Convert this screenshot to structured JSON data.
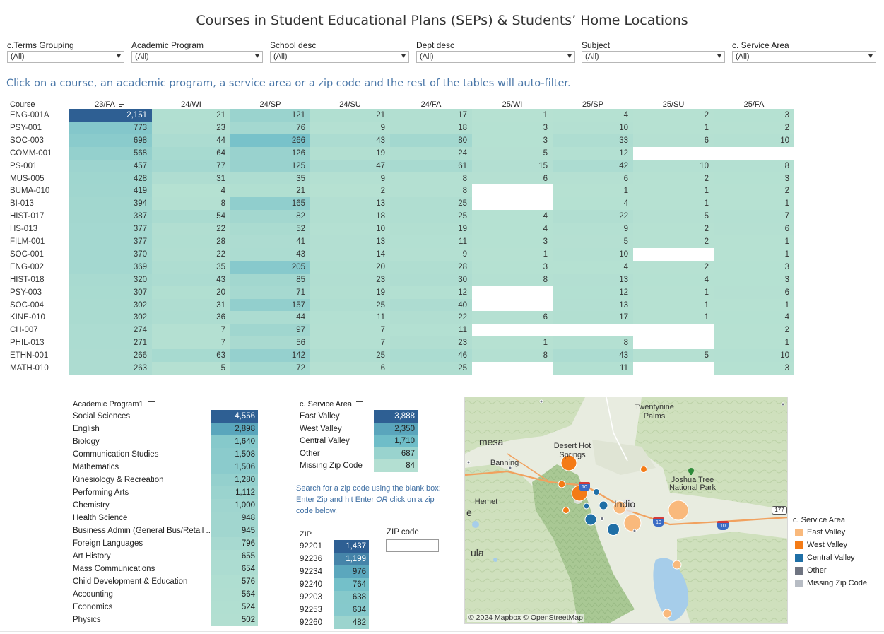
{
  "title": "Courses in Student Educational Plans (SEPs) & Students’ Home Locations",
  "filters": [
    {
      "label": "c.Terms Grouping",
      "value": "(All)",
      "left": 10,
      "width": 166
    },
    {
      "label": "Academic Program",
      "value": "(All)",
      "left": 186,
      "width": 186
    },
    {
      "label": "School desc",
      "value": "(All)",
      "left": 382,
      "width": 197
    },
    {
      "label": "Dept desc",
      "value": "(All)",
      "left": 589,
      "width": 225
    },
    {
      "label": "Subject",
      "value": "(All)",
      "left": 823,
      "width": 203
    },
    {
      "label": "c. Service Area",
      "value": "(All)",
      "left": 1036,
      "width": 204
    }
  ],
  "instruction": "Click on a course, an academic program, a service area or a zip code and the rest of the tables will auto-filter.",
  "course_table": {
    "header_course": "Course",
    "terms": [
      "23/FA",
      "24/WI",
      "24/SP",
      "24/SU",
      "24/FA",
      "25/WI",
      "25/SP",
      "25/SU",
      "25/FA"
    ],
    "rows": [
      {
        "course": "ENG-001A",
        "values": [
          2151,
          21,
          121,
          21,
          17,
          1,
          4,
          2,
          3
        ]
      },
      {
        "course": "PSY-001",
        "values": [
          773,
          23,
          76,
          9,
          18,
          3,
          10,
          1,
          2
        ]
      },
      {
        "course": "SOC-003",
        "values": [
          698,
          44,
          266,
          43,
          80,
          3,
          33,
          6,
          10
        ]
      },
      {
        "course": "COMM-001",
        "values": [
          568,
          64,
          126,
          19,
          24,
          5,
          12,
          null,
          null
        ]
      },
      {
        "course": "PS-001",
        "values": [
          457,
          77,
          125,
          47,
          61,
          15,
          42,
          10,
          8
        ]
      },
      {
        "course": "MUS-005",
        "values": [
          428,
          31,
          35,
          9,
          8,
          6,
          6,
          2,
          3
        ]
      },
      {
        "course": "BUMA-010",
        "values": [
          419,
          4,
          21,
          2,
          8,
          null,
          1,
          1,
          2
        ]
      },
      {
        "course": "BI-013",
        "values": [
          394,
          8,
          165,
          13,
          25,
          null,
          4,
          1,
          1
        ]
      },
      {
        "course": "HIST-017",
        "values": [
          387,
          54,
          82,
          18,
          25,
          4,
          22,
          5,
          7
        ]
      },
      {
        "course": "HS-013",
        "values": [
          377,
          22,
          52,
          10,
          19,
          4,
          9,
          2,
          6
        ]
      },
      {
        "course": "FILM-001",
        "values": [
          377,
          28,
          41,
          13,
          11,
          3,
          5,
          2,
          1
        ]
      },
      {
        "course": "SOC-001",
        "values": [
          370,
          22,
          43,
          14,
          9,
          1,
          10,
          null,
          1
        ]
      },
      {
        "course": "ENG-002",
        "values": [
          369,
          35,
          205,
          20,
          28,
          3,
          4,
          2,
          3
        ]
      },
      {
        "course": "HIST-018",
        "values": [
          320,
          43,
          85,
          23,
          30,
          8,
          13,
          4,
          3
        ]
      },
      {
        "course": "PSY-003",
        "values": [
          307,
          20,
          71,
          19,
          12,
          null,
          12,
          1,
          6
        ]
      },
      {
        "course": "SOC-004",
        "values": [
          302,
          31,
          157,
          25,
          40,
          null,
          13,
          1,
          1
        ]
      },
      {
        "course": "KINE-010",
        "values": [
          302,
          36,
          44,
          11,
          22,
          6,
          17,
          1,
          4
        ]
      },
      {
        "course": "CH-007",
        "values": [
          274,
          7,
          97,
          7,
          11,
          null,
          null,
          null,
          2
        ]
      },
      {
        "course": "PHIL-013",
        "values": [
          271,
          7,
          56,
          7,
          23,
          1,
          8,
          null,
          1
        ]
      },
      {
        "course": "ETHN-001",
        "values": [
          266,
          63,
          142,
          25,
          46,
          8,
          43,
          5,
          10
        ]
      },
      {
        "course": "MATH-010",
        "values": [
          263,
          5,
          72,
          6,
          25,
          null,
          11,
          null,
          3
        ]
      }
    ]
  },
  "program_table": {
    "header": "Academic Program1",
    "rows": [
      {
        "label": "Social Sciences",
        "value": 4556
      },
      {
        "label": "English",
        "value": 2898
      },
      {
        "label": "Biology",
        "value": 1640
      },
      {
        "label": "Communication Studies",
        "value": 1508
      },
      {
        "label": "Mathematics",
        "value": 1506
      },
      {
        "label": "Kinesiology & Recreation",
        "value": 1280
      },
      {
        "label": "Performing Arts",
        "value": 1112
      },
      {
        "label": "Chemistry",
        "value": 1000
      },
      {
        "label": "Health Science",
        "value": 948
      },
      {
        "label": "Business Admin (General Bus/Retail ..",
        "value": 945
      },
      {
        "label": "Foreign Languages",
        "value": 796
      },
      {
        "label": "Art History",
        "value": 655
      },
      {
        "label": "Mass Communications",
        "value": 654
      },
      {
        "label": "Child Development & Education",
        "value": 576
      },
      {
        "label": "Accounting",
        "value": 564
      },
      {
        "label": "Economics",
        "value": 524
      },
      {
        "label": "Physics",
        "value": 502
      }
    ]
  },
  "service_table": {
    "header": "c. Service Area",
    "rows": [
      {
        "label": "East Valley",
        "value": 3888
      },
      {
        "label": "West Valley",
        "value": 2350
      },
      {
        "label": "Central Valley",
        "value": 1710
      },
      {
        "label": "Other",
        "value": 687
      },
      {
        "label": "Missing Zip Code",
        "value": 84
      }
    ]
  },
  "zip_hint_parts": [
    "Search for a zip code using the blank box: Enter Zip and hit Enter ",
    "OR",
    " click on a zip code below."
  ],
  "zip_table": {
    "header": "ZIP",
    "rows": [
      {
        "label": "92201",
        "value": 1437
      },
      {
        "label": "92236",
        "value": 1199
      },
      {
        "label": "92234",
        "value": 976
      },
      {
        "label": "92240",
        "value": 764
      },
      {
        "label": "92203",
        "value": 638
      },
      {
        "label": "92253",
        "value": 634
      },
      {
        "label": "92260",
        "value": 482
      }
    ]
  },
  "zip_input": {
    "label": "ZIP code",
    "value": ""
  },
  "map": {
    "labels": [
      {
        "text": "Twentynine",
        "x": 268,
        "y": 8
      },
      {
        "text": "Palms",
        "x": 268,
        "y": 21
      },
      {
        "text": "Desert Hot",
        "x": 152,
        "y": 63
      },
      {
        "text": "Springs",
        "x": 152,
        "y": 76
      },
      {
        "text": "Banning",
        "x": 56,
        "y": 87
      },
      {
        "text": "Joshua Tree",
        "x": 322,
        "y": 111
      },
      {
        "text": "National Park",
        "x": 322,
        "y": 122
      },
      {
        "text": "Hemet",
        "x": 30,
        "y": 142
      },
      {
        "text": "Indio",
        "x": 226,
        "y": 143
      },
      {
        "text": "mesa",
        "x": 20,
        "y": 55
      },
      {
        "text": "ula",
        "x": 8,
        "y": 212
      },
      {
        "text": "e",
        "x": 2,
        "y": 155
      }
    ],
    "highway_labels": [
      "10",
      "10",
      "177"
    ],
    "attribution": "© 2024 Mapbox  © OpenStreetMap"
  },
  "legend": {
    "title": "c. Service Area",
    "items": [
      {
        "label": "East Valley",
        "color": "#f9b97c"
      },
      {
        "label": "West Valley",
        "color": "#f47b16"
      },
      {
        "label": "Central Valley",
        "color": "#1f6fa6"
      },
      {
        "label": "Other",
        "color": "#6f7481"
      },
      {
        "label": "Missing Zip Code",
        "color": "#b7bcc4"
      }
    ]
  },
  "colors": {
    "header_text": "#222222",
    "hint_text": "#3f6fa3",
    "empty_cell": "#ffffff"
  }
}
